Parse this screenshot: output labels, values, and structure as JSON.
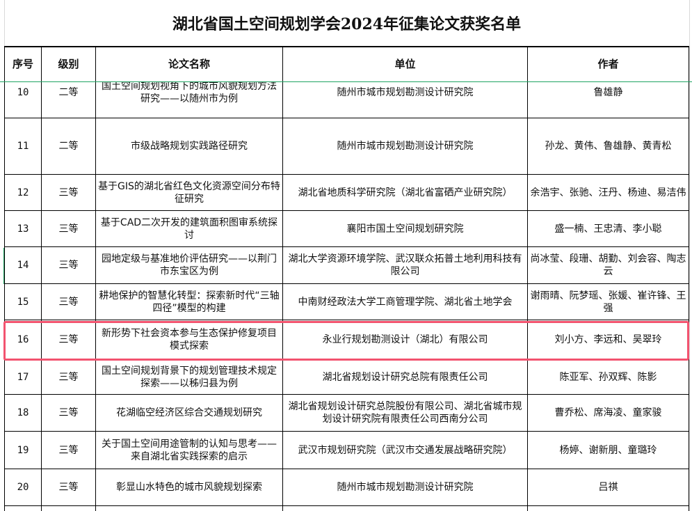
{
  "title": "湖北省国土空间规划学会2024年征集论文获奖名单",
  "headers": {
    "no": "序号",
    "level": "级别",
    "paper": "论文名称",
    "unit": "单位",
    "author": "作者"
  },
  "rows": [
    {
      "no": "10",
      "level": "二等",
      "paper": "国土空间规划视角下的城市风貌规划方法研究——以随州市为例",
      "unit": "随州市城市规划勘测设计研究院",
      "author": "鲁雄静"
    },
    {
      "no": "11",
      "level": "二等",
      "paper": "市级战略规划实践路径研究",
      "unit": "随州市城市规划勘测设计研究院",
      "author": "孙龙、黄伟、鲁雄静、黄青松"
    },
    {
      "no": "12",
      "level": "三等",
      "paper": "基于GIS的湖北省红色文化资源空间分布特征研究",
      "unit": "湖北省地质科学研究院（湖北省富硒产业研究院）",
      "author": "余浩宇、张驰、汪丹、杨迪、易洁伟"
    },
    {
      "no": "13",
      "level": "三等",
      "paper": "基于CAD二次开发的建筑面积图审系统探讨",
      "unit": "襄阳市国土空间规划研究院",
      "author": "盛一楠、王忠清、李小聪"
    },
    {
      "no": "14",
      "level": "三等",
      "paper": "园地定级与基准地价评估研究——以荆门市东宝区为例",
      "unit": "湖北大学资源环境学院、武汉联众拓普土地利用科技有限公司",
      "author": "尚冰莹、段珊、胡勤、刘会容、陶志云"
    },
    {
      "no": "15",
      "level": "三等",
      "paper": "耕地保护的智慧化转型：探索新时代“三轴四径”模型的构建",
      "unit": "中南财经政法大学工商管理学院、湖北省土地学会",
      "author": "谢雨晴、阮梦瑶、张媛、崔许锋、王强"
    },
    {
      "no": "16",
      "level": "三等",
      "paper": "新形势下社会资本参与生态保护修复项目模式探索",
      "unit": "永业行规划勘测设计（湖北）有限公司",
      "author": "刘小方、李远和、吴翠玲"
    },
    {
      "no": "17",
      "level": "三等",
      "paper": "国土空间规划背景下的规划管理技术规定探索——以秭归县为例",
      "unit": "湖北省规划设计研究总院有限责任公司",
      "author": "陈亚军、孙双辉、陈影"
    },
    {
      "no": "18",
      "level": "三等",
      "paper": "花湖临空经济区综合交通规划研究",
      "unit": "湖北省规划设计研究总院股份有限公司、湖北省城市规划设计研究院有限责任公司西南分公司",
      "author": "曹乔松、席海凌、童家骏"
    },
    {
      "no": "19",
      "level": "三等",
      "paper": "关于国土空间用途管制的认知与思考——来自湖北省实践探索的启示",
      "unit": "武汉市规划研究院（武汉市交通发展战略研究院）",
      "author": "杨婷、谢新朋、童璐玲"
    },
    {
      "no": "20",
      "level": "三等",
      "paper": "彰显山水特色的城市风貌规划探索",
      "unit": "随州市城市规划勘测设计研究院",
      "author": "吕祺"
    }
  ],
  "colors": {
    "highlight": "#f2536f",
    "freeze_line": "#1ea462"
  }
}
